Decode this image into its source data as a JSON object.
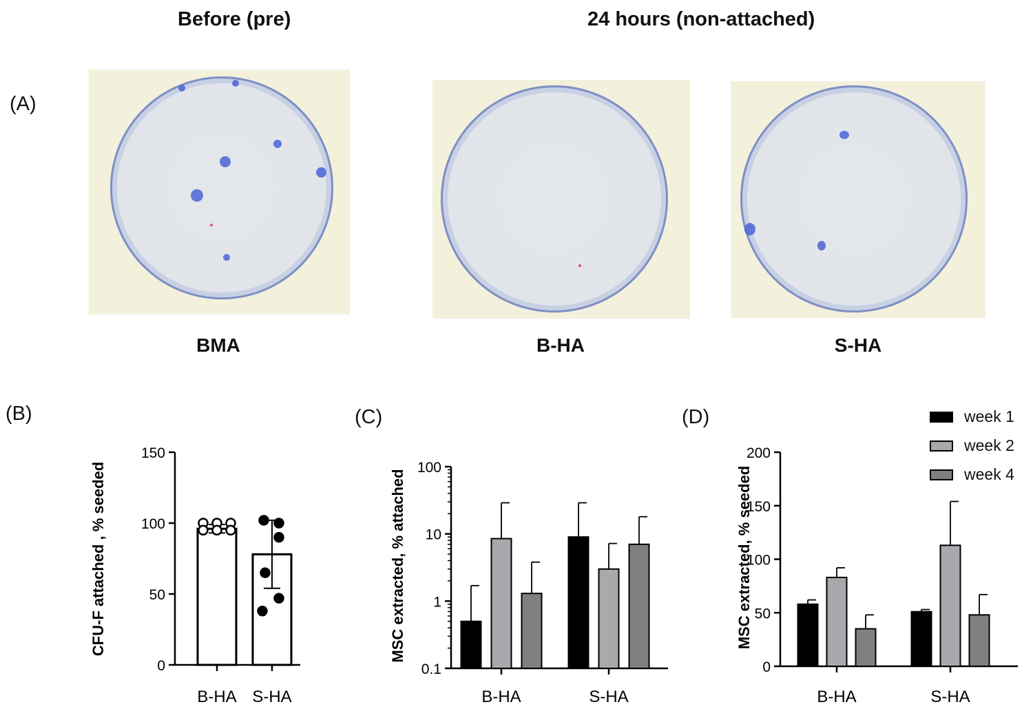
{
  "headers": {
    "before": "Before (pre)",
    "after": "24 hours (non-attached)"
  },
  "panel_labels": {
    "A": "(A)",
    "B": "(B)",
    "C": "(C)",
    "D": "(D)"
  },
  "plates": [
    {
      "name": "BMA"
    },
    {
      "name": "B-HA"
    },
    {
      "name": "S-HA"
    }
  ],
  "legend": [
    {
      "label": "week 1",
      "color": "#000000"
    },
    {
      "label": "week 2",
      "color": "#a9a9ad"
    },
    {
      "label": "week 4",
      "color": "#808080"
    }
  ],
  "chart_data": [
    {
      "panel": "B",
      "type": "bar",
      "categories": [
        "B-HA",
        "S-HA"
      ],
      "values": [
        96,
        78
      ],
      "errors_upper": [
        3,
        24
      ],
      "errors_lower": [
        3,
        24
      ],
      "points": [
        [
          100,
          100,
          100,
          95,
          95,
          95
        ],
        [
          102,
          100,
          90,
          65,
          47,
          38
        ]
      ],
      "point_style": [
        "open",
        "filled"
      ],
      "ylabel": "CFU-F attached , % seeded",
      "ylim": [
        0,
        150
      ],
      "yticks": [
        0,
        50,
        100,
        150
      ],
      "bar_color": "#ffffff"
    },
    {
      "panel": "C",
      "type": "bar",
      "yscale": "log",
      "categories": [
        "B-HA",
        "S-HA"
      ],
      "series": [
        {
          "values": [
            0.5,
            9
          ],
          "errors_upper": [
            1.7,
            29
          ]
        },
        {
          "values": [
            8.5,
            3
          ],
          "errors_upper": [
            29,
            7.2
          ]
        },
        {
          "values": [
            1.3,
            7
          ],
          "errors_upper": [
            3.8,
            18
          ]
        }
      ],
      "ylabel": "MSC extracted, % attached",
      "ylim": [
        0.1,
        100
      ],
      "yticks": [
        0.1,
        1,
        10,
        100
      ],
      "ytick_labels": [
        "0.1",
        "1",
        "10",
        "100"
      ]
    },
    {
      "panel": "D",
      "type": "bar",
      "categories": [
        "B-HA",
        "S-HA"
      ],
      "series": [
        {
          "values": [
            58,
            51
          ],
          "errors_upper": [
            62,
            53
          ]
        },
        {
          "values": [
            83,
            113
          ],
          "errors_upper": [
            92,
            154
          ]
        },
        {
          "values": [
            35,
            48
          ],
          "errors_upper": [
            48,
            67
          ]
        }
      ],
      "ylabel": "MSC extracted, % seeded",
      "ylim": [
        0,
        200
      ],
      "yticks": [
        0,
        50,
        100,
        150,
        200
      ]
    }
  ]
}
